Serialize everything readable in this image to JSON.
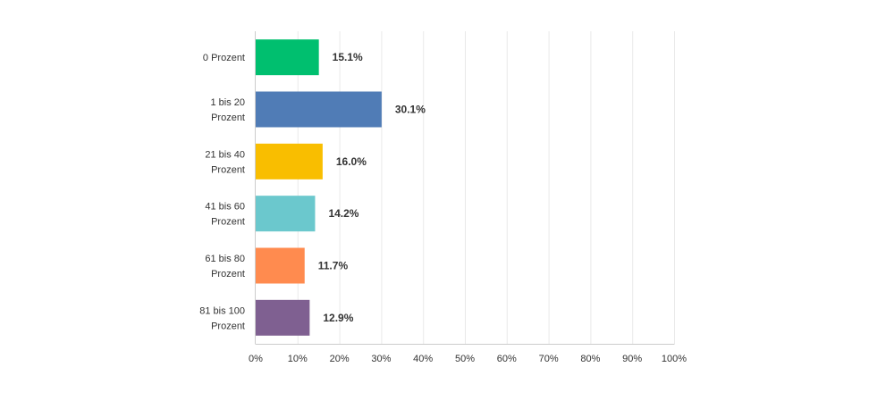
{
  "chart_data": {
    "type": "bar",
    "orientation": "horizontal",
    "categories": [
      [
        "0 Prozent"
      ],
      [
        "1 bis 20",
        "Prozent"
      ],
      [
        "21 bis 40",
        "Prozent"
      ],
      [
        "41 bis 60",
        "Prozent"
      ],
      [
        "61 bis 80",
        "Prozent"
      ],
      [
        "81 bis 100",
        "Prozent"
      ]
    ],
    "values": [
      15.1,
      30.1,
      16.0,
      14.2,
      11.7,
      12.9
    ],
    "value_labels": [
      "15.1%",
      "30.1%",
      "16.0%",
      "14.2%",
      "11.7%",
      "12.9%"
    ],
    "colors": [
      "#00bf6f",
      "#507cb6",
      "#f9be00",
      "#6bc8cd",
      "#ff8b4f",
      "#7f6091"
    ],
    "x_ticks": [
      "0%",
      "10%",
      "20%",
      "30%",
      "40%",
      "50%",
      "60%",
      "70%",
      "80%",
      "90%",
      "100%"
    ],
    "xlim": [
      0,
      100
    ],
    "grid": true,
    "legend": "none",
    "title": "",
    "xlabel": "",
    "ylabel": ""
  }
}
